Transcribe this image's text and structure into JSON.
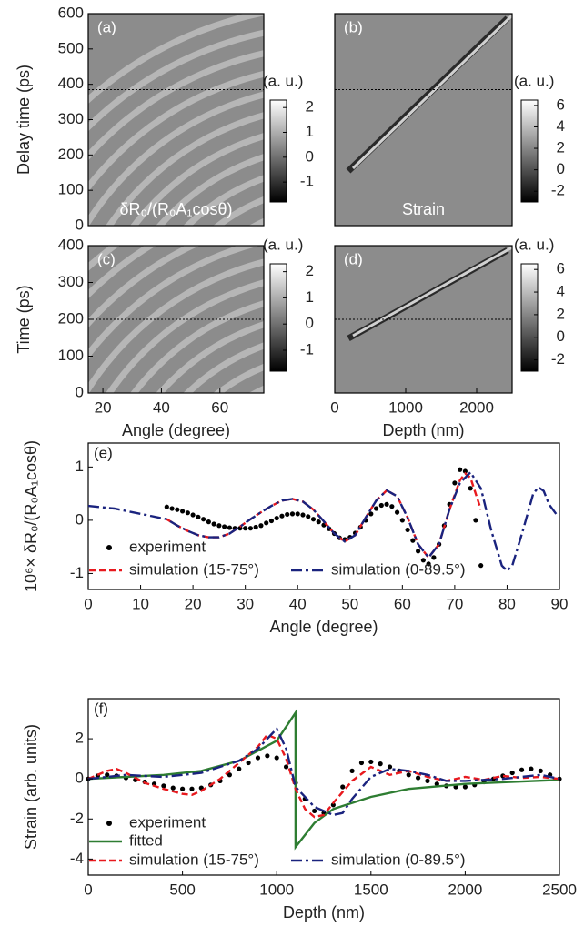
{
  "chart_data": [
    {
      "type": "heatmap",
      "label": "(a)",
      "annotation": "δR₀/(R₀A₁cosθ)",
      "xlim": [
        15,
        75
      ],
      "ylim": [
        0,
        600
      ],
      "yticks": [
        0,
        100,
        200,
        300,
        400,
        500,
        600
      ],
      "ylabel": "Delay time (ps)",
      "hline": 385,
      "colorbar": {
        "label": "(a. u.)",
        "lim": [
          -1.8,
          2.3
        ],
        "ticks": [
          -1,
          0,
          1,
          2
        ]
      }
    },
    {
      "type": "heatmap",
      "label": "(b)",
      "annotation": "Strain",
      "xlim": [
        0,
        2500
      ],
      "ylim": [
        0,
        600
      ],
      "hline": 385,
      "colorbar": {
        "label": "(a. u.)",
        "lim": [
          -3,
          6.5
        ],
        "ticks": [
          -2,
          0,
          2,
          4,
          6
        ]
      }
    },
    {
      "type": "heatmap",
      "label": "(c)",
      "xlim": [
        15,
        75
      ],
      "xticks": [
        20,
        40,
        60
      ],
      "xlabel": "Angle (degree)",
      "ylim": [
        0,
        400
      ],
      "yticks": [
        0,
        100,
        200,
        300,
        400
      ],
      "ylabel": "Time (ps)",
      "hline": 200,
      "colorbar": {
        "label": "(a. u.)",
        "lim": [
          -1.8,
          2.3
        ],
        "ticks": [
          -1,
          0,
          1,
          2
        ]
      }
    },
    {
      "type": "heatmap",
      "label": "(d)",
      "xlim": [
        0,
        2500
      ],
      "xticks": [
        0,
        1000,
        2000
      ],
      "xlabel": "Depth (nm)",
      "ylim": [
        0,
        400
      ],
      "hline": 200,
      "colorbar": {
        "label": "(a. u.)",
        "lim": [
          -3,
          6.5
        ],
        "ticks": [
          -2,
          0,
          2,
          4,
          6
        ]
      }
    },
    {
      "type": "line",
      "label": "(e)",
      "xlim": [
        0,
        90
      ],
      "xticks": [
        0,
        10,
        20,
        30,
        40,
        50,
        60,
        70,
        80,
        90
      ],
      "xlabel": "Angle (degree)",
      "ylim": [
        -1.3,
        1.45
      ],
      "yticks": [
        -1,
        0,
        1
      ],
      "ylabel": "10⁶× δR₀/(R₀A₁cosθ)",
      "series": [
        {
          "name": "experiment",
          "color": "#000000",
          "marker": "dot",
          "x": [
            15,
            16,
            17,
            18,
            19,
            20,
            21,
            22,
            23,
            24,
            25,
            26,
            27,
            28,
            29,
            30,
            31,
            32,
            33,
            34,
            35,
            36,
            37,
            38,
            39,
            40,
            41,
            42,
            43,
            44,
            45,
            46,
            47,
            48,
            49,
            50,
            51,
            52,
            53,
            54,
            55,
            56,
            57,
            58,
            59,
            60,
            61,
            62,
            63,
            64,
            65,
            66,
            67,
            68,
            69,
            70,
            71,
            72,
            73,
            74,
            75
          ],
          "values": [
            0.25,
            0.22,
            0.2,
            0.17,
            0.14,
            0.1,
            0.06,
            0.02,
            -0.03,
            -0.07,
            -0.1,
            -0.12,
            -0.14,
            -0.15,
            -0.15,
            -0.15,
            -0.15,
            -0.13,
            -0.1,
            -0.05,
            -0.01,
            0.04,
            0.08,
            0.11,
            0.12,
            0.12,
            0.1,
            0.07,
            0.02,
            -0.03,
            -0.09,
            -0.16,
            -0.25,
            -0.33,
            -0.36,
            -0.32,
            -0.24,
            -0.13,
            0,
            0.12,
            0.22,
            0.28,
            0.3,
            0.26,
            0.15,
            0,
            -0.18,
            -0.38,
            -0.58,
            -0.75,
            -0.82,
            -0.7,
            -0.45,
            -0.1,
            0.3,
            0.7,
            0.95,
            0.92,
            0.6,
            0,
            -0.85
          ]
        },
        {
          "name": "simulation (15-75°)",
          "color": "#e8191e",
          "dash": "dashed",
          "x": [
            15,
            17,
            19,
            21,
            23,
            25,
            27,
            29,
            31,
            33,
            35,
            37,
            39,
            41,
            43,
            45,
            47,
            49,
            51,
            53,
            55,
            57,
            59,
            61,
            63,
            65,
            67,
            69,
            71,
            72,
            73,
            75
          ],
          "values": [
            0.02,
            -0.1,
            -0.2,
            -0.28,
            -0.32,
            -0.32,
            -0.25,
            -0.12,
            0.02,
            0.15,
            0.27,
            0.37,
            0.4,
            0.35,
            0.2,
            -0.02,
            -0.25,
            -0.4,
            -0.28,
            0.05,
            0.37,
            0.56,
            0.45,
            0.05,
            -0.45,
            -0.7,
            -0.45,
            0.2,
            0.75,
            0.88,
            0.8,
            0.2
          ]
        },
        {
          "name": "simulation (0-89.5°)",
          "color": "#1a237e",
          "dash": "dashdot",
          "x": [
            0,
            5,
            10,
            15,
            17,
            19,
            21,
            23,
            25,
            27,
            29,
            31,
            33,
            35,
            37,
            39,
            41,
            43,
            45,
            47,
            49,
            51,
            53,
            55,
            57,
            59,
            61,
            63,
            65,
            67,
            69,
            71,
            73,
            75,
            77,
            79,
            80,
            81,
            83,
            85,
            86,
            87,
            88,
            89.5
          ],
          "values": [
            0.27,
            0.22,
            0.12,
            0.02,
            -0.1,
            -0.2,
            -0.28,
            -0.32,
            -0.32,
            -0.25,
            -0.12,
            0.02,
            0.15,
            0.27,
            0.37,
            0.4,
            0.35,
            0.2,
            -0.02,
            -0.25,
            -0.4,
            -0.28,
            0.05,
            0.37,
            0.56,
            0.45,
            0.05,
            -0.45,
            -0.7,
            -0.45,
            0.2,
            0.7,
            0.9,
            0.6,
            -0.2,
            -0.85,
            -0.95,
            -0.85,
            -0.2,
            0.5,
            0.62,
            0.55,
            0.3,
            0.1
          ]
        }
      ]
    },
    {
      "type": "line",
      "label": "(f)",
      "xlim": [
        0,
        2500
      ],
      "xticks": [
        0,
        500,
        1000,
        1500,
        2000,
        2500
      ],
      "xlabel": "Depth (nm)",
      "ylim": [
        -4.8,
        4
      ],
      "yticks": [
        -4,
        -2,
        0,
        2
      ],
      "ylabel": "Strain (arb. units)",
      "series": [
        {
          "name": "experiment",
          "color": "#000000",
          "marker": "dot",
          "x": [
            0,
            50,
            100,
            150,
            200,
            250,
            300,
            350,
            400,
            450,
            500,
            550,
            600,
            650,
            700,
            750,
            800,
            850,
            900,
            950,
            1000,
            1050,
            1100,
            1150,
            1200,
            1250,
            1300,
            1350,
            1400,
            1450,
            1500,
            1550,
            1600,
            1650,
            1700,
            1750,
            1800,
            1850,
            1900,
            1950,
            2000,
            2050,
            2100,
            2150,
            2200,
            2250,
            2300,
            2350,
            2400,
            2450,
            2500
          ],
          "values": [
            0,
            0.15,
            0.2,
            0.15,
            0.05,
            -0.05,
            -0.15,
            -0.25,
            -0.35,
            -0.45,
            -0.5,
            -0.5,
            -0.45,
            -0.3,
            -0.1,
            0.2,
            0.5,
            0.8,
            1.05,
            1.15,
            1.05,
            0.6,
            -0.2,
            -1,
            -1.6,
            -1.7,
            -1.3,
            -0.4,
            0.4,
            0.8,
            0.85,
            0.75,
            0.6,
            0.4,
            0.2,
            0.05,
            -0.1,
            -0.25,
            -0.35,
            -0.4,
            -0.4,
            -0.3,
            -0.15,
            0,
            0.15,
            0.3,
            0.45,
            0.5,
            0.4,
            0.2,
            0
          ]
        },
        {
          "name": "fitted",
          "color": "#2e7d32",
          "dash": "solid",
          "x": [
            0,
            200,
            400,
            600,
            800,
            1000,
            1100,
            1100,
            1200,
            1300,
            1500,
            1700,
            2000,
            2500
          ],
          "values": [
            0,
            0.1,
            0.2,
            0.4,
            0.9,
            1.9,
            3.3,
            -3.4,
            -2.2,
            -1.5,
            -0.9,
            -0.5,
            -0.25,
            -0.05
          ]
        },
        {
          "name": "simulation (15-75°)",
          "color": "#e8191e",
          "dash": "dashed",
          "x": [
            0,
            100,
            150,
            200,
            300,
            400,
            500,
            550,
            600,
            700,
            800,
            900,
            950,
            1000,
            1050,
            1100,
            1150,
            1200,
            1250,
            1300,
            1400,
            1500,
            1550,
            1600,
            1700,
            1800,
            1900,
            2000,
            2100,
            2200,
            2300,
            2400,
            2500
          ],
          "values": [
            0,
            0.4,
            0.5,
            0.3,
            -0.2,
            -0.5,
            -0.75,
            -0.8,
            -0.6,
            0,
            0.8,
            1.6,
            2.2,
            2,
            1,
            -0.5,
            -1.5,
            -1.9,
            -1.8,
            -1.2,
            -0.1,
            0.6,
            0.4,
            0.2,
            0.4,
            0.1,
            -0.1,
            0.1,
            -0.05,
            0.15,
            0.05,
            0.1,
            0
          ]
        },
        {
          "name": "simulation (0-89.5°)",
          "color": "#1a237e",
          "dash": "dashdot",
          "x": [
            0,
            100,
            200,
            400,
            600,
            800,
            900,
            1000,
            1050,
            1100,
            1200,
            1300,
            1350,
            1400,
            1500,
            1600,
            1700,
            1800,
            1900,
            2000,
            2200,
            2400,
            2500
          ],
          "values": [
            0,
            0.1,
            0.2,
            0.1,
            0.3,
            0.9,
            1.5,
            2.5,
            1.5,
            -0.4,
            -1.4,
            -1.8,
            -1.7,
            -1,
            0.1,
            0.5,
            0.4,
            0.2,
            -0.1,
            -0.1,
            0,
            0.2,
            0
          ]
        }
      ]
    }
  ]
}
